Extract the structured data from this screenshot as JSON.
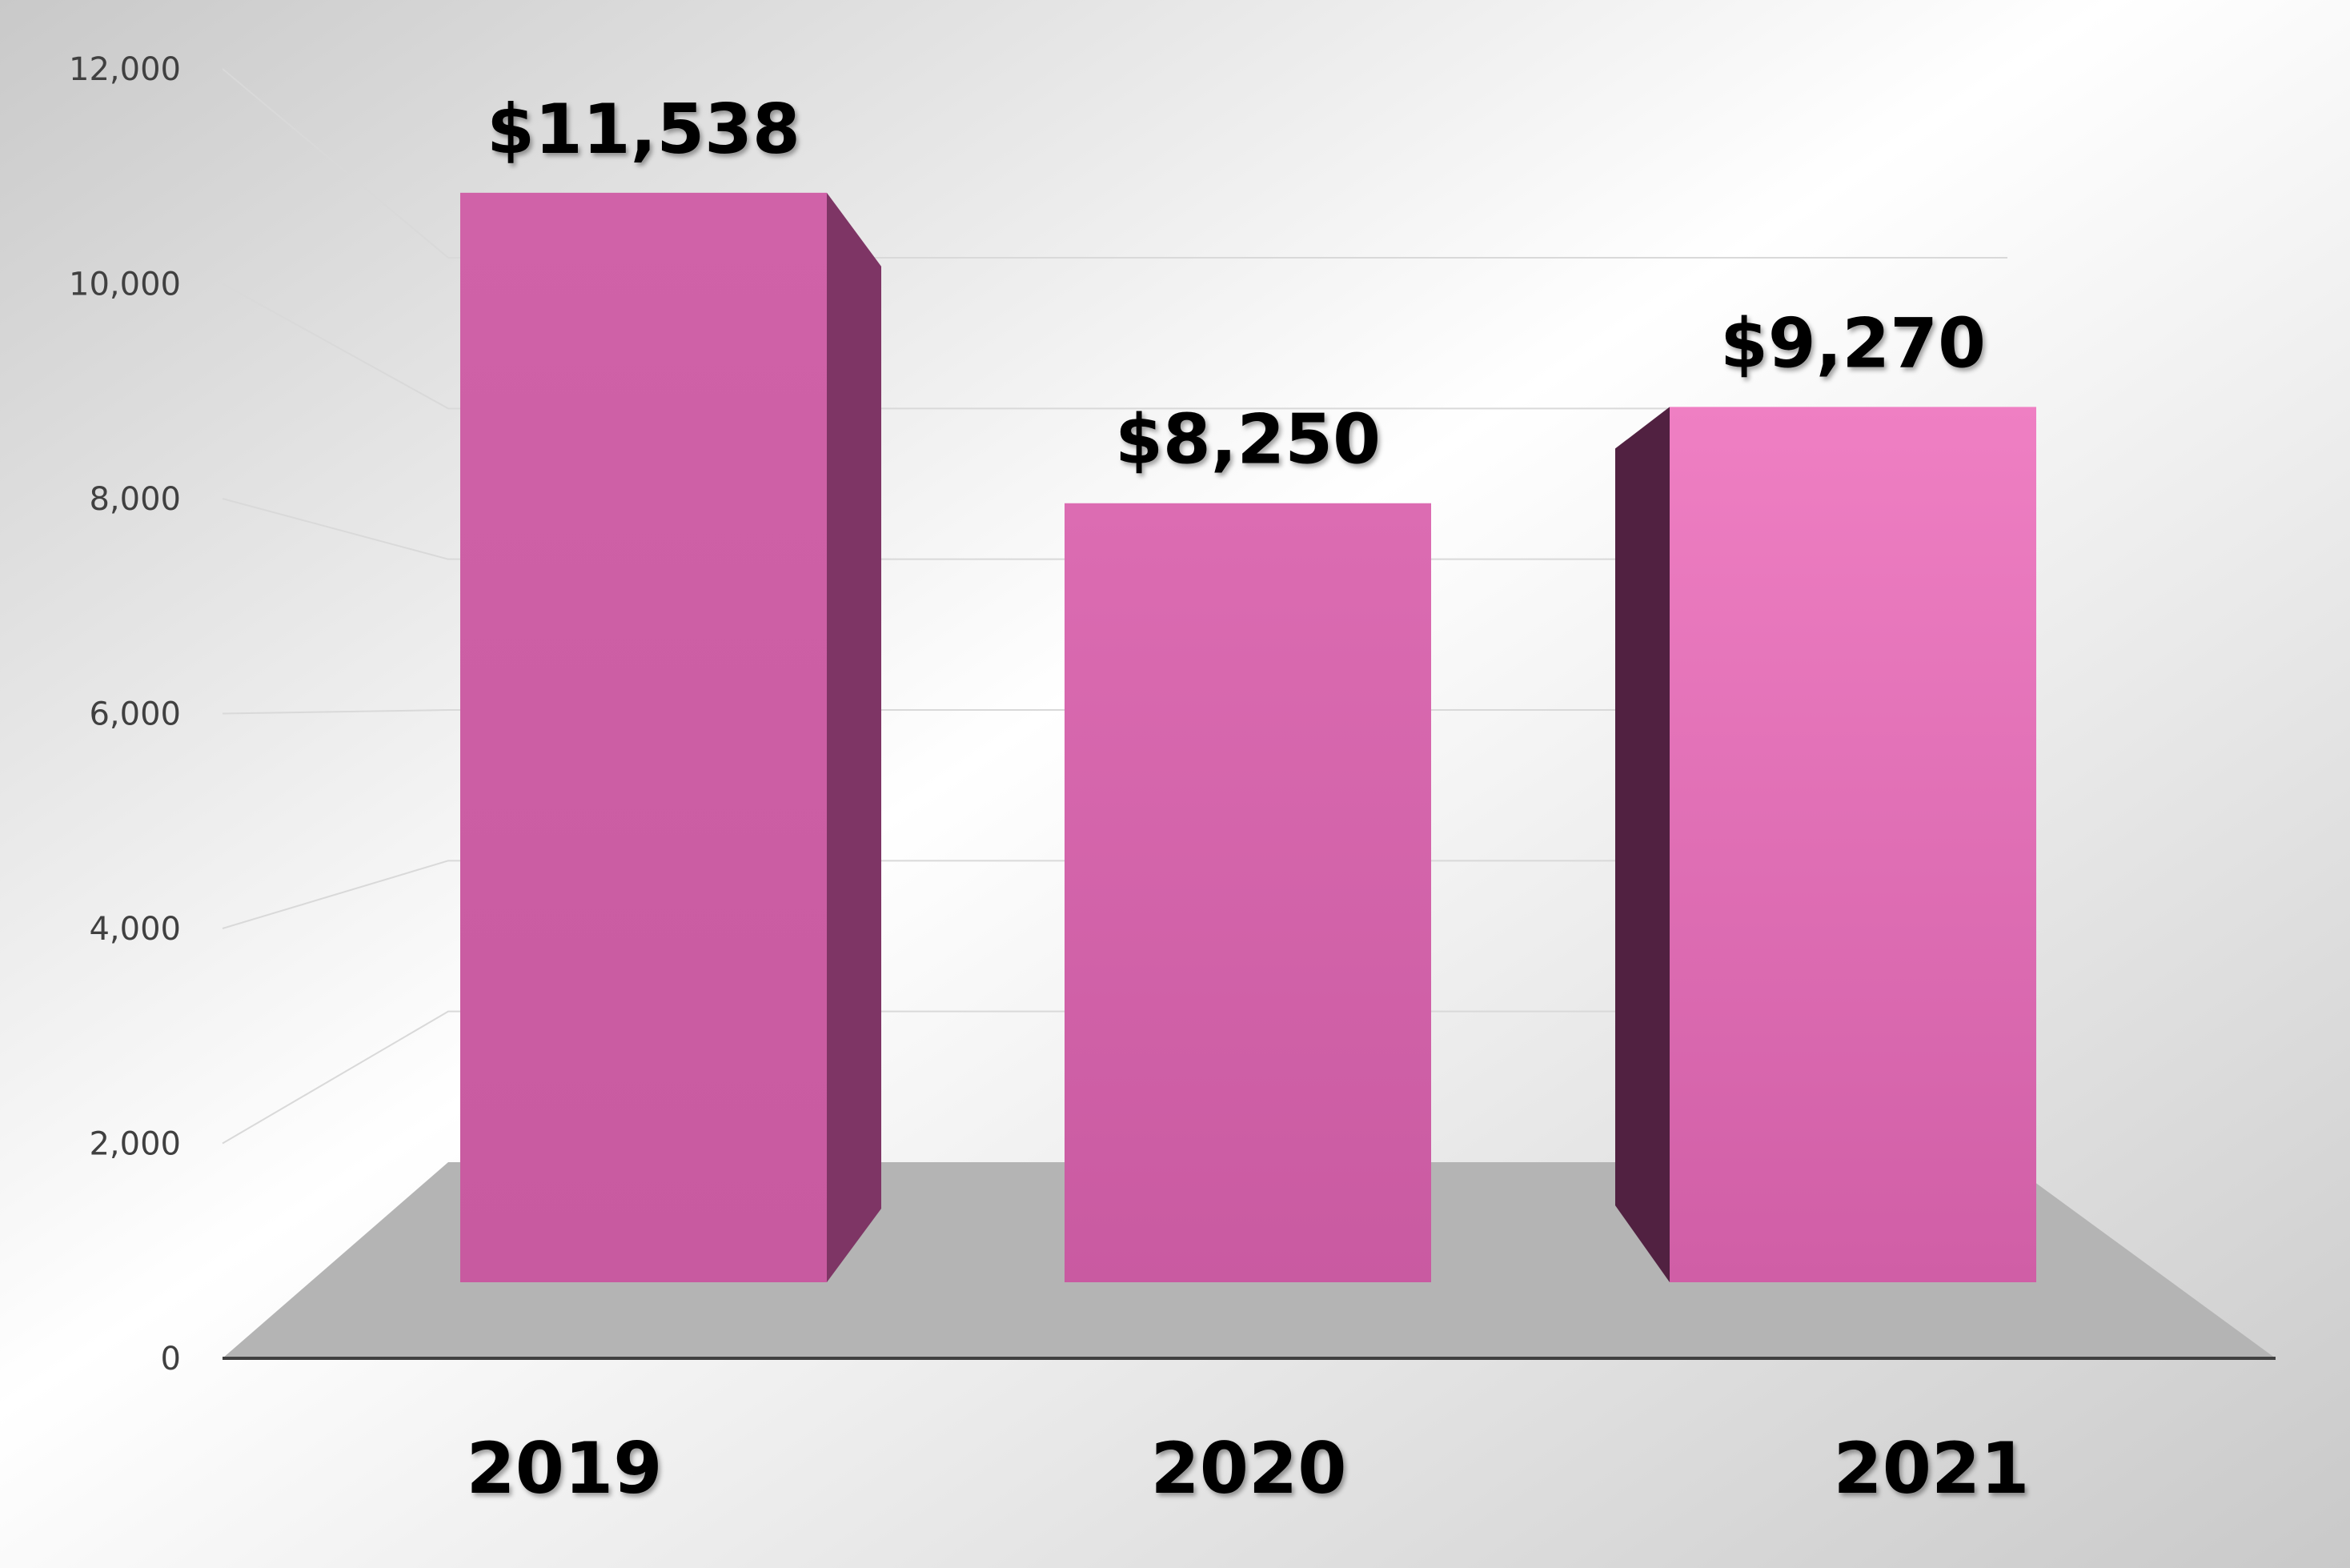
{
  "chart_data": {
    "type": "bar",
    "categories": [
      "2019",
      "2020",
      "2021"
    ],
    "values": [
      11538,
      8250,
      9270
    ],
    "data_labels": [
      "$11,538",
      "$8,250",
      "$9,270"
    ],
    "y_ticks": [
      {
        "value": 0,
        "label": "0"
      },
      {
        "value": 2000,
        "label": "2,000"
      },
      {
        "value": 4000,
        "label": "4,000"
      },
      {
        "value": 6000,
        "label": "6,000"
      },
      {
        "value": 8000,
        "label": "8,000"
      },
      {
        "value": 10000,
        "label": "10,000"
      },
      {
        "value": 12000,
        "label": "12,000"
      }
    ],
    "ylim": [
      0,
      12000
    ],
    "grid": true,
    "legend": "none",
    "title": "",
    "xlabel": "",
    "ylabel": "",
    "colors": {
      "bar_front": "#d062a8",
      "bar_front_light": "#ee7fc3",
      "bar_side_left": "#512141",
      "bar_side_right": "#7e3565",
      "floor": "#b4b4b4",
      "gridline": "#d9d9d9",
      "axis_line": "#404040",
      "background_top": "#ffffff",
      "background_bottom": "#c8c8c8"
    }
  }
}
